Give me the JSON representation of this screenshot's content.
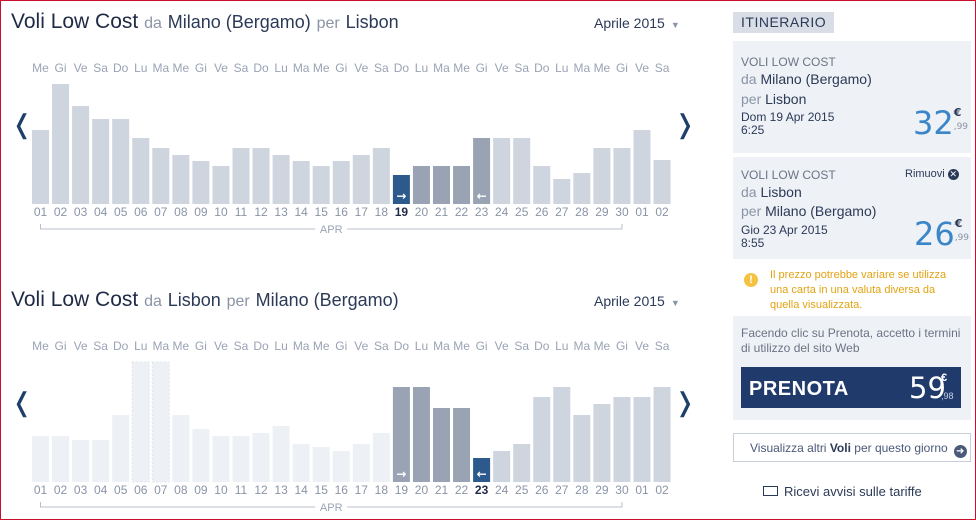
{
  "outbound": {
    "title": "Voli Low Cost",
    "from_pre": "da",
    "from": "Milano (Bergamo)",
    "to_pre": "per",
    "to": "Lisbon",
    "month": "Aprile 2015",
    "prev_icon": "chevron-left-icon",
    "next_icon": "chevron-right-icon",
    "month_label": "APR",
    "weekdays": [
      "Me",
      "Gi",
      "Ve",
      "Sa",
      "Do",
      "Lu",
      "Ma",
      "Me",
      "Gi",
      "Ve",
      "Sa",
      "Do",
      "Lu",
      "Ma",
      "Me",
      "Gi",
      "Ve",
      "Sa",
      "Do",
      "Lu",
      "Ma",
      "Me",
      "Gi",
      "Ve",
      "Sa",
      "Do",
      "Lu",
      "Ma",
      "Me",
      "Gi",
      "Ve",
      "Sa"
    ],
    "days": [
      "01",
      "02",
      "03",
      "04",
      "05",
      "06",
      "07",
      "08",
      "09",
      "10",
      "11",
      "12",
      "13",
      "14",
      "15",
      "16",
      "17",
      "18",
      "19",
      "20",
      "21",
      "22",
      "23",
      "24",
      "25",
      "26",
      "27",
      "28",
      "29",
      "30",
      "01",
      "02"
    ],
    "bar_levels": [
      0.62,
      1.0,
      0.82,
      0.71,
      0.71,
      0.55,
      0.47,
      0.41,
      0.36,
      0.32,
      0.47,
      0.47,
      0.41,
      0.36,
      0.32,
      0.36,
      0.41,
      0.47,
      0.24,
      0.32,
      0.32,
      0.32,
      0.55,
      0.55,
      0.55,
      0.32,
      0.21,
      0.26,
      0.47,
      0.47,
      0.62,
      0.37
    ],
    "selected_index": 18,
    "return_index": 22,
    "range": [
      18,
      22
    ],
    "faded": []
  },
  "inbound": {
    "title": "Voli Low Cost",
    "from_pre": "da",
    "from": "Lisbon",
    "to_pre": "per",
    "to": "Milano (Bergamo)",
    "month": "Aprile 2015",
    "prev_icon": "chevron-left-icon",
    "next_icon": "chevron-right-icon",
    "month_label": "APR",
    "weekdays": [
      "Me",
      "Gi",
      "Ve",
      "Sa",
      "Do",
      "Lu",
      "Ma",
      "Me",
      "Gi",
      "Ve",
      "Sa",
      "Do",
      "Lu",
      "Ma",
      "Me",
      "Gi",
      "Ve",
      "Sa",
      "Do",
      "Lu",
      "Ma",
      "Me",
      "Gi",
      "Ve",
      "Sa",
      "Do",
      "Lu",
      "Ma",
      "Me",
      "Gi",
      "Ve",
      "Sa"
    ],
    "days": [
      "01",
      "02",
      "03",
      "04",
      "05",
      "06",
      "07",
      "08",
      "09",
      "10",
      "11",
      "12",
      "13",
      "14",
      "15",
      "16",
      "17",
      "18",
      "19",
      "20",
      "21",
      "22",
      "23",
      "24",
      "25",
      "26",
      "27",
      "28",
      "29",
      "30",
      "01",
      "02"
    ],
    "bar_levels": [
      0.38,
      0.38,
      0.35,
      0.35,
      0.56,
      1.0,
      1.0,
      0.56,
      0.44,
      0.38,
      0.38,
      0.41,
      0.47,
      0.32,
      0.29,
      0.26,
      0.32,
      0.41,
      0.79,
      0.79,
      0.62,
      0.62,
      0.2,
      0.26,
      0.32,
      0.71,
      0.79,
      0.56,
      0.65,
      0.71,
      0.71,
      0.79
    ],
    "selected_index": 22,
    "outbound_index": 18,
    "range": [
      18,
      22
    ],
    "faded": [
      0,
      1,
      2,
      3,
      4,
      5,
      6,
      7,
      8,
      9,
      10,
      11,
      12,
      13,
      14,
      15,
      16,
      17
    ]
  },
  "sidebar": {
    "header": "ITINERARIO",
    "leg1": {
      "label": "VOLI LOW COST",
      "from_pre": "da",
      "from": "Milano (Bergamo)",
      "to_pre": "per",
      "to": "Lisbon",
      "date": "Dom 19 Apr 2015",
      "time": "6:25",
      "price": "32",
      "currency": "€",
      "cents": ",99"
    },
    "leg2": {
      "label": "VOLI LOW COST",
      "remove": "Rimuovi",
      "from_pre": "da",
      "from": "Lisbon",
      "to_pre": "per",
      "to": "Milano (Bergamo)",
      "date": "Gio 23 Apr 2015",
      "time": "8:55",
      "price": "26",
      "currency": "€",
      "cents": ",99"
    },
    "warning": "Il prezzo potrebbe variare se utilizza una carta in una valuta diversa da quella visualizzata.",
    "terms": "Facendo clic su Prenota, accetto i termini di utilizzo del sito Web",
    "book_label": "PRENOTA",
    "book_price": "59",
    "book_currency": "€",
    "book_cents": ",98",
    "more_pre": "Visualizza altri ",
    "more_bold": "Voli",
    "more_post": " per questo giorno",
    "alerts": "Ricevi avvisi sulle tariffe"
  },
  "colors": {
    "bar": "#cfd5de",
    "bar_faded": "#edf0f4",
    "bar_range": "#9aa3b4",
    "bar_selected": "#2d5a8c",
    "accent": "#3a86c8",
    "book": "#1f3a6b"
  }
}
